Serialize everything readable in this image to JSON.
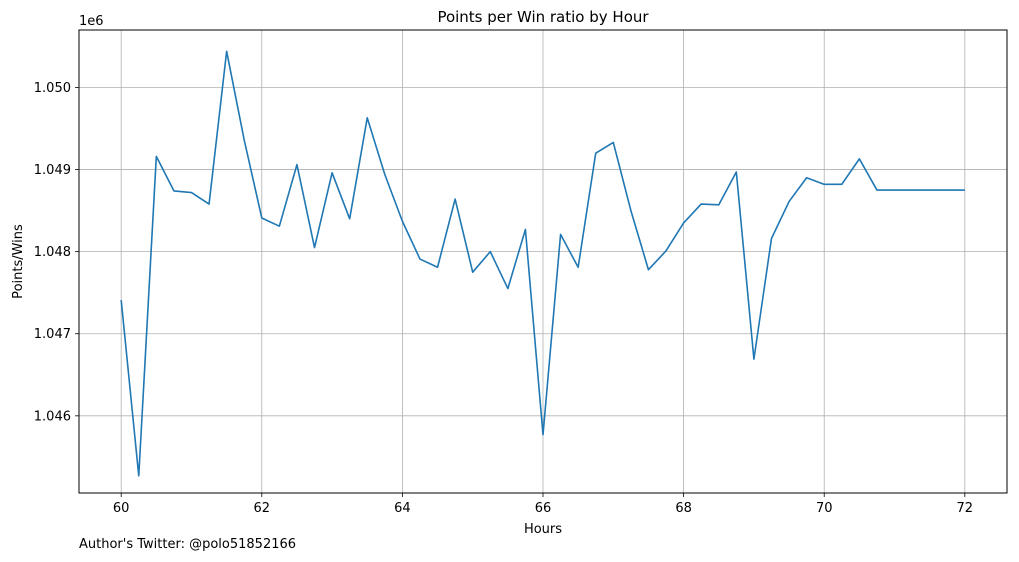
{
  "chart_data": {
    "type": "line",
    "title": "Points per Win ratio by Hour",
    "xlabel": "Hours",
    "ylabel": "Points/Wins",
    "y_offset_label": "1e6",
    "xlim": [
      59.4,
      72.6
    ],
    "ylim": [
      1.04506,
      1.0507
    ],
    "x_ticks": [
      60,
      62,
      64,
      66,
      68,
      70,
      72
    ],
    "y_ticks": [
      1.046,
      1.047,
      1.048,
      1.049,
      1.05
    ],
    "x_tick_labels": [
      "60",
      "62",
      "64",
      "66",
      "68",
      "70",
      "72"
    ],
    "y_tick_labels": [
      "1.046",
      "1.047",
      "1.048",
      "1.049",
      "1.050"
    ],
    "grid": true,
    "series": [
      {
        "color": "#1f77b4",
        "x": [
          60.0,
          60.25,
          60.5,
          60.75,
          61.0,
          61.25,
          61.5,
          61.75,
          62.0,
          62.25,
          62.5,
          62.75,
          63.0,
          63.25,
          63.5,
          63.75,
          64.0,
          64.25,
          64.5,
          64.75,
          65.0,
          65.25,
          65.5,
          65.75,
          66.0,
          66.25,
          66.5,
          66.75,
          67.0,
          67.25,
          67.5,
          67.75,
          68.0,
          68.25,
          68.5,
          68.75,
          69.0,
          69.25,
          69.5,
          69.75,
          70.0,
          70.25,
          70.5,
          70.75,
          71.0,
          71.25,
          71.5,
          71.75,
          72.0
        ],
        "y": [
          1.04741,
          1.04527,
          1.04916,
          1.04874,
          1.04872,
          1.04858,
          1.05044,
          1.04936,
          1.04841,
          1.04831,
          1.04906,
          1.04805,
          1.04896,
          1.0484,
          1.04963,
          1.04894,
          1.04837,
          1.04791,
          1.04781,
          1.04864,
          1.04775,
          1.048,
          1.04755,
          1.04827,
          1.04577,
          1.04821,
          1.04781,
          1.0492,
          1.04933,
          1.0485,
          1.04778,
          1.04801,
          1.04835,
          1.04858,
          1.04857,
          1.04897,
          1.04669,
          1.04816,
          1.04861,
          1.0489,
          1.04882,
          1.04882,
          1.04913,
          1.04875,
          1.04875,
          1.04875,
          1.04875,
          1.04875,
          1.04875
        ]
      }
    ]
  },
  "footer": {
    "text": "Author's Twitter: @polo51852166"
  }
}
